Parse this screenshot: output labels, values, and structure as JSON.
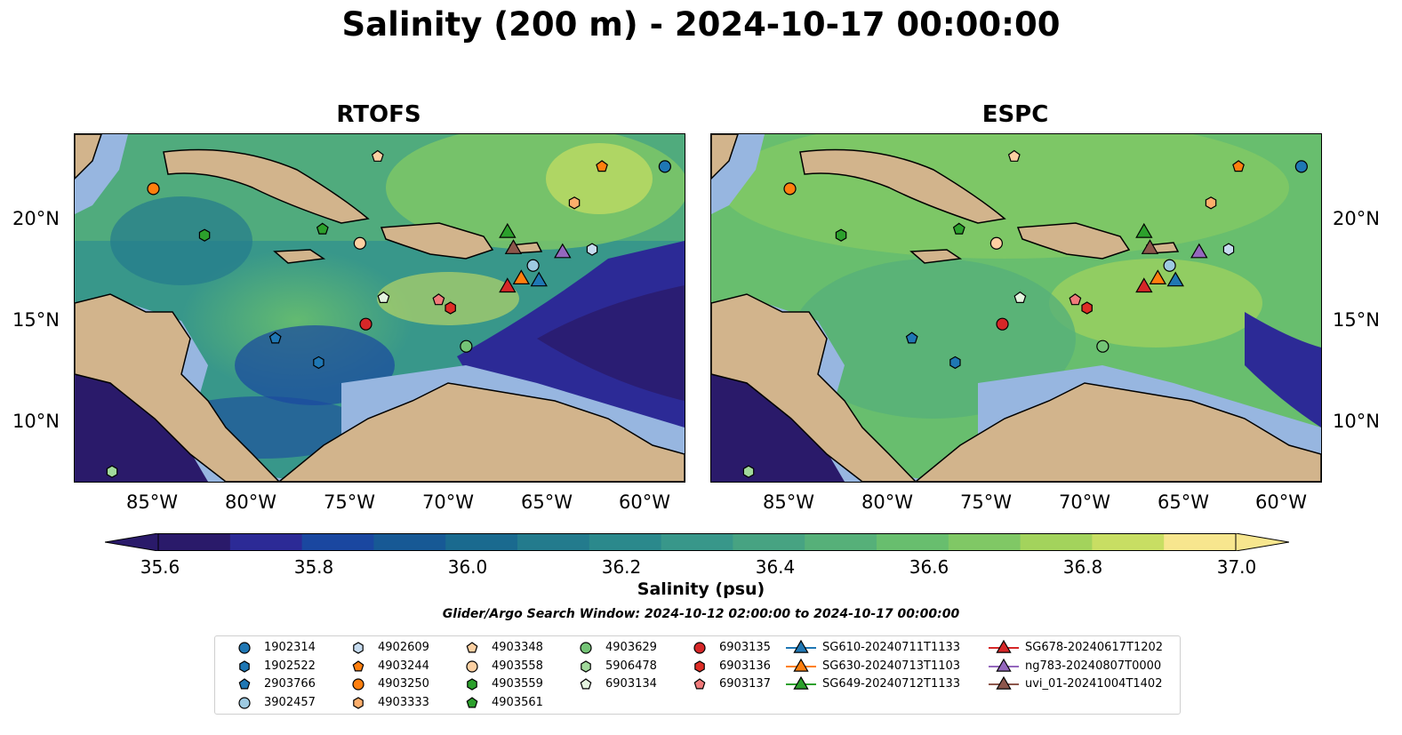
{
  "title": "Salinity (200 m) - 2024-10-17 00:00:00",
  "panels": [
    {
      "title": "RTOFS"
    },
    {
      "title": "ESPC"
    }
  ],
  "lat_labels": [
    "20°N",
    "15°N",
    "10°N"
  ],
  "lon_labels": [
    "85°W",
    "80°W",
    "75°W",
    "70°W",
    "65°W",
    "60°W"
  ],
  "colorbar": {
    "label": "Salinity (psu)",
    "ticks": [
      "35.6",
      "35.8",
      "36.0",
      "36.2",
      "36.4",
      "36.6",
      "36.8",
      "37.0"
    ],
    "colors": [
      "#2a1a6a",
      "#2c2a96",
      "#1a47a0",
      "#175995",
      "#1a6a8f",
      "#237b8d",
      "#2b898c",
      "#38978a",
      "#47a382",
      "#56b079",
      "#68be6e",
      "#80c865",
      "#a3d35c",
      "#c8de63",
      "#f7e68e"
    ]
  },
  "search_window": "Glider/Argo Search Window: 2024-10-12 02:00:00 to 2024-10-17 00:00:00",
  "legend": [
    {
      "label": "1902314",
      "marker": "circle",
      "color": "#1f77b4"
    },
    {
      "label": "1902522",
      "marker": "hexagon",
      "color": "#1f77b4"
    },
    {
      "label": "2903766",
      "marker": "pentagon",
      "color": "#1f77b4"
    },
    {
      "label": "3902457",
      "marker": "circle",
      "color": "#9ecae1"
    },
    {
      "label": "4902609",
      "marker": "hexagon",
      "color": "#c6dbef"
    },
    {
      "label": "4903244",
      "marker": "pentagon",
      "color": "#ff7f0e"
    },
    {
      "label": "4903250",
      "marker": "circle",
      "color": "#ff7f0e"
    },
    {
      "label": "4903333",
      "marker": "hexagon",
      "color": "#fdae6b"
    },
    {
      "label": "4903348",
      "marker": "pentagon",
      "color": "#fdd0a2"
    },
    {
      "label": "4903558",
      "marker": "circle",
      "color": "#fdd0a2"
    },
    {
      "label": "4903559",
      "marker": "hexagon",
      "color": "#2ca02c"
    },
    {
      "label": "4903561",
      "marker": "pentagon",
      "color": "#2ca02c"
    },
    {
      "label": "4903629",
      "marker": "circle",
      "color": "#74c476"
    },
    {
      "label": "5906478",
      "marker": "hexagon",
      "color": "#a1d99b"
    },
    {
      "label": "6903134",
      "marker": "pentagon",
      "color": "#e5f5e0"
    },
    {
      "label": "6903135",
      "marker": "circle",
      "color": "#d62728"
    },
    {
      "label": "6903136",
      "marker": "hexagon",
      "color": "#de2d26"
    },
    {
      "label": "6903137",
      "marker": "pentagon",
      "color": "#f07a7a"
    },
    {
      "label": "SG610-20240711T1133",
      "marker": "triangle",
      "color": "#1f77b4"
    },
    {
      "label": "SG630-20240713T1103",
      "marker": "triangle",
      "color": "#ff7f0e"
    },
    {
      "label": "SG649-20240712T1133",
      "marker": "triangle",
      "color": "#2ca02c"
    },
    {
      "label": "SG678-20240617T1202",
      "marker": "triangle",
      "color": "#d62728"
    },
    {
      "label": "ng783-20240807T0000",
      "marker": "triangle",
      "color": "#9467bd"
    },
    {
      "label": "uvi_01-20241004T1402",
      "marker": "triangle",
      "color": "#8c564b"
    }
  ],
  "markers": [
    {
      "id": "1902314",
      "lon": -59.0,
      "lat": 22.6
    },
    {
      "id": "1902522",
      "lon": -76.6,
      "lat": 12.9
    },
    {
      "id": "2903766",
      "lon": -78.8,
      "lat": 14.1
    },
    {
      "id": "3902457",
      "lon": -65.7,
      "lat": 17.7
    },
    {
      "id": "4902609",
      "lon": -62.7,
      "lat": 18.5
    },
    {
      "id": "4903244",
      "lon": -62.2,
      "lat": 22.6
    },
    {
      "id": "4903250",
      "lon": -85.0,
      "lat": 21.5
    },
    {
      "id": "4903333",
      "lon": -63.6,
      "lat": 20.8
    },
    {
      "id": "4903348",
      "lon": -73.6,
      "lat": 23.1
    },
    {
      "id": "4903558",
      "lon": -74.5,
      "lat": 18.8
    },
    {
      "id": "4903559",
      "lon": -82.4,
      "lat": 19.2
    },
    {
      "id": "4903561",
      "lon": -76.4,
      "lat": 19.5
    },
    {
      "id": "4903629",
      "lon": -69.1,
      "lat": 13.7
    },
    {
      "id": "5906478",
      "lon": -87.1,
      "lat": 7.5
    },
    {
      "id": "6903134",
      "lon": -73.3,
      "lat": 16.1
    },
    {
      "id": "6903135",
      "lon": -74.2,
      "lat": 14.8
    },
    {
      "id": "6903136",
      "lon": -69.9,
      "lat": 15.6
    },
    {
      "id": "6903137",
      "lon": -70.5,
      "lat": 16.0
    },
    {
      "id": "SG610-20240711T1133",
      "lon": -65.4,
      "lat": 17.0
    },
    {
      "id": "SG630-20240713T1103",
      "lon": -66.3,
      "lat": 17.1
    },
    {
      "id": "SG649-20240712T1133",
      "lon": -67.0,
      "lat": 19.4
    },
    {
      "id": "SG678-20240617T1202",
      "lon": -67.0,
      "lat": 16.7
    },
    {
      "id": "ng783-20240807T0000",
      "lon": -64.2,
      "lat": 18.4
    },
    {
      "id": "uvi_01-20241004T1402",
      "lon": -66.7,
      "lat": 18.6
    }
  ],
  "map_extent": {
    "lon": [
      -89,
      -58
    ],
    "lat": [
      7,
      24.2
    ]
  }
}
